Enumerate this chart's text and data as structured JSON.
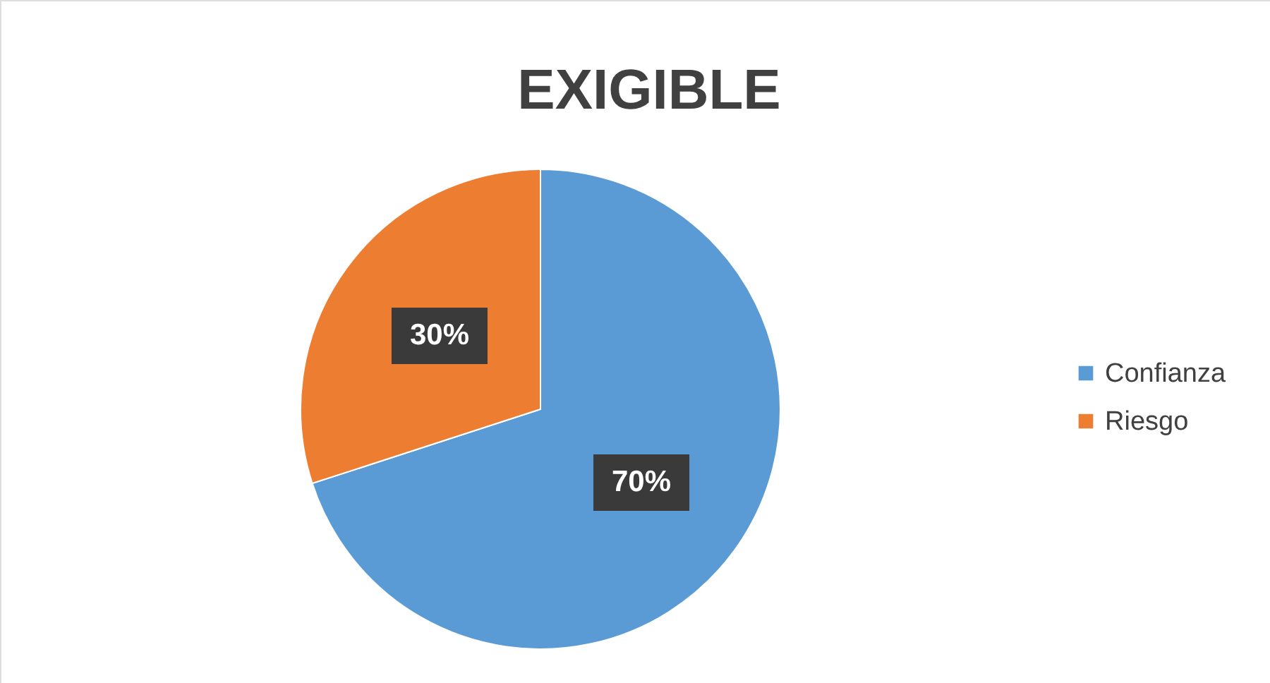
{
  "chart_data": {
    "type": "pie",
    "title": "EXIGIBLE",
    "categories": [
      "Confianza",
      "Riesgo"
    ],
    "values": [
      70,
      30
    ],
    "colors": [
      "#5b9bd5",
      "#ed7d31"
    ],
    "value_labels": [
      "70%",
      "30%"
    ],
    "legend": "right"
  }
}
